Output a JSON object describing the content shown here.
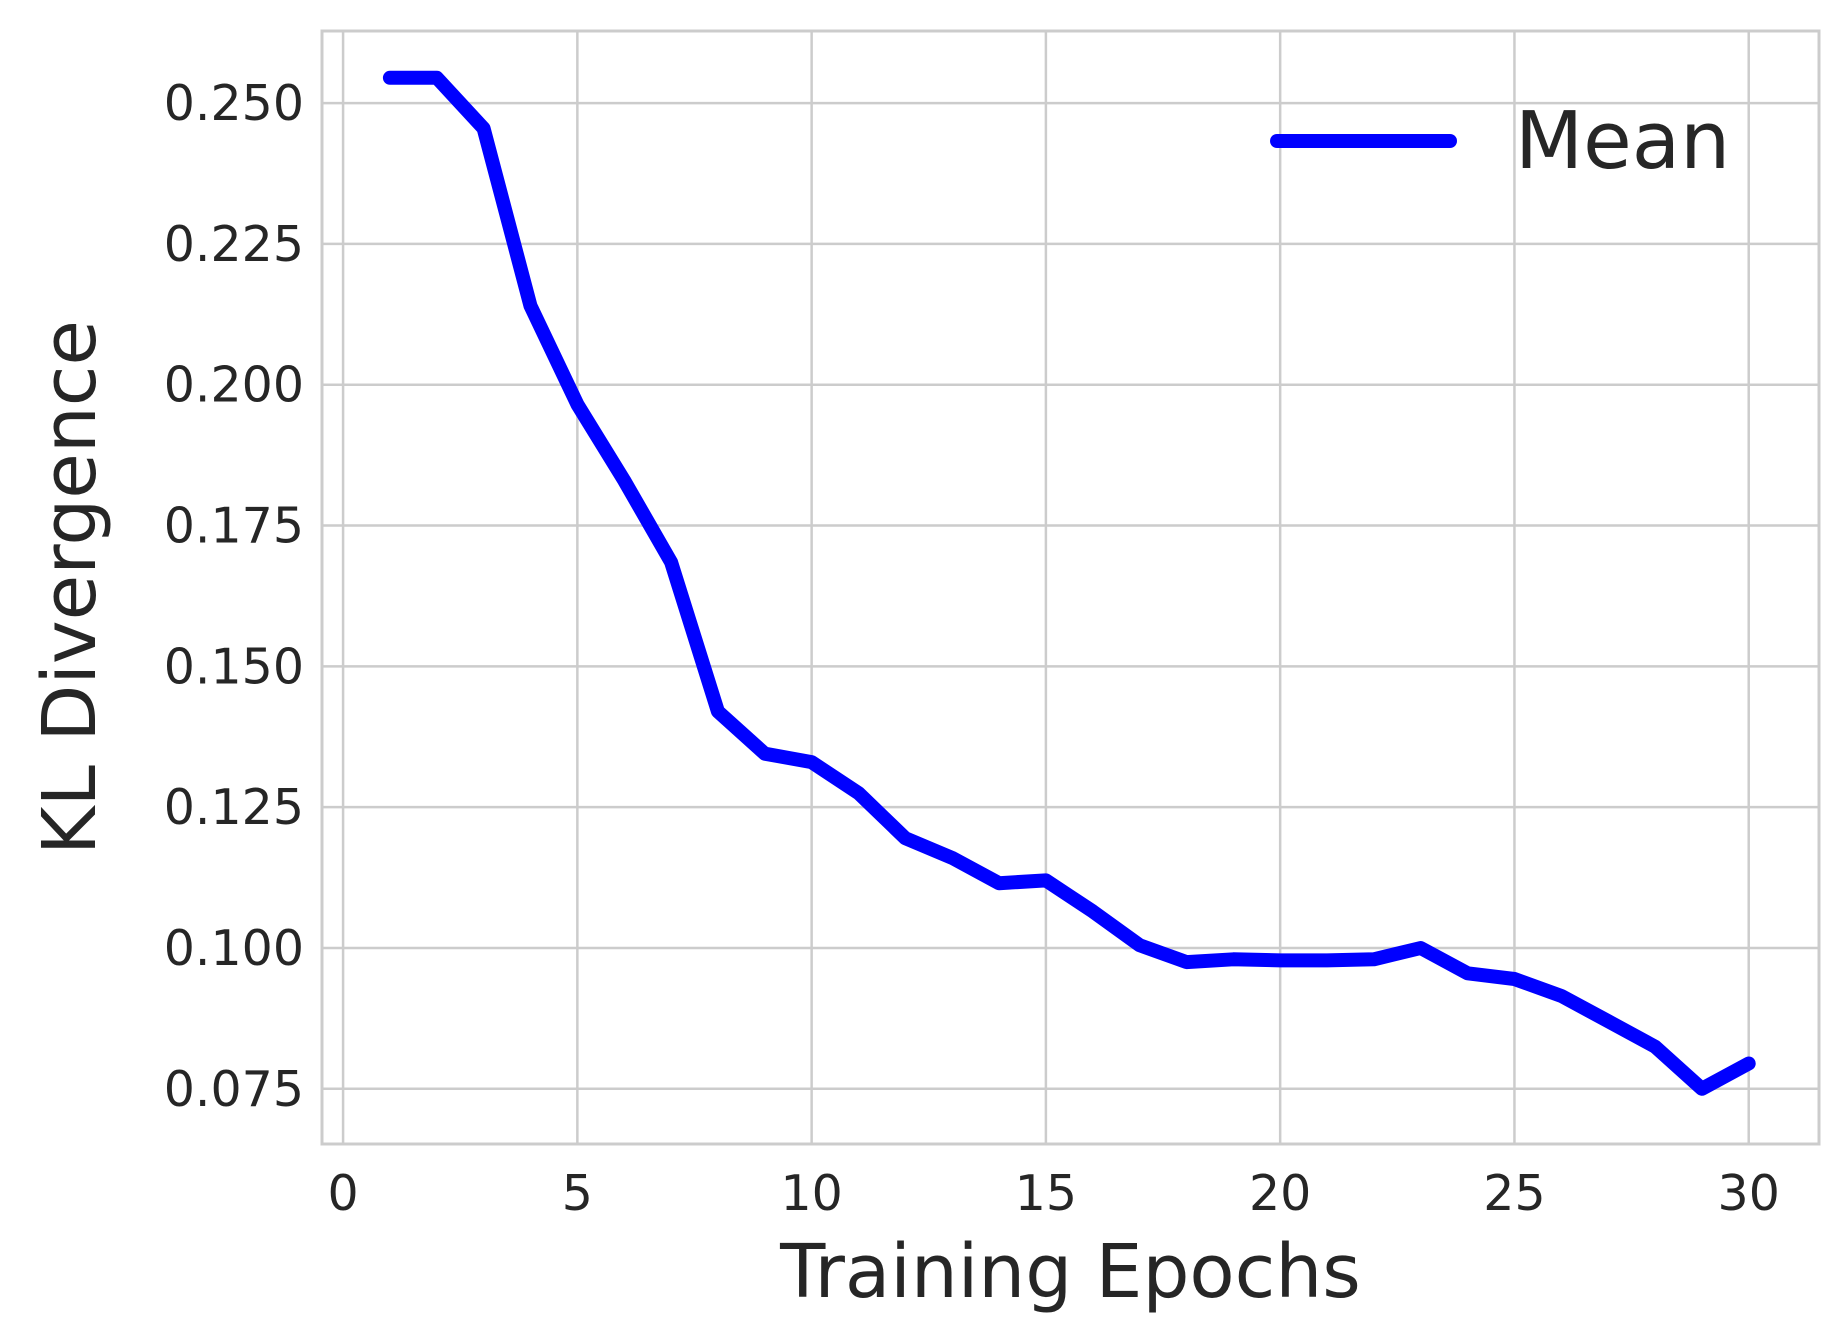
{
  "chart_data": {
    "type": "line",
    "title": "",
    "xlabel": "Training Epochs",
    "ylabel": "KL Divergence",
    "xlim": [
      -0.45,
      31.5
    ],
    "ylim": [
      0.0652,
      0.2628
    ],
    "xticks": [
      0,
      5,
      10,
      15,
      20,
      25,
      30
    ],
    "xtick_labels": [
      "0",
      "5",
      "10",
      "15",
      "20",
      "25",
      "30"
    ],
    "yticks": [
      0.075,
      0.1,
      0.125,
      0.15,
      0.175,
      0.2,
      0.225,
      0.25
    ],
    "ytick_labels": [
      "0.075",
      "0.100",
      "0.125",
      "0.150",
      "0.175",
      "0.200",
      "0.225",
      "0.250"
    ],
    "grid": true,
    "legend_position": "top-right",
    "series": [
      {
        "name": "Mean",
        "color": "#0000ff",
        "x": [
          1,
          2,
          3,
          4,
          5,
          6,
          7,
          8,
          9,
          10,
          11,
          12,
          13,
          14,
          15,
          16,
          17,
          18,
          19,
          20,
          21,
          22,
          23,
          24,
          25,
          26,
          27,
          28,
          29,
          30
        ],
        "y": [
          0.2545,
          0.2545,
          0.2455,
          0.214,
          0.1965,
          0.183,
          0.1685,
          0.142,
          0.1345,
          0.133,
          0.1275,
          0.1195,
          0.116,
          0.1115,
          0.112,
          0.1065,
          0.1005,
          0.0975,
          0.098,
          0.0978,
          0.0978,
          0.098,
          0.1,
          0.0955,
          0.0945,
          0.0915,
          0.087,
          0.0825,
          0.075,
          0.0795
        ]
      }
    ]
  }
}
